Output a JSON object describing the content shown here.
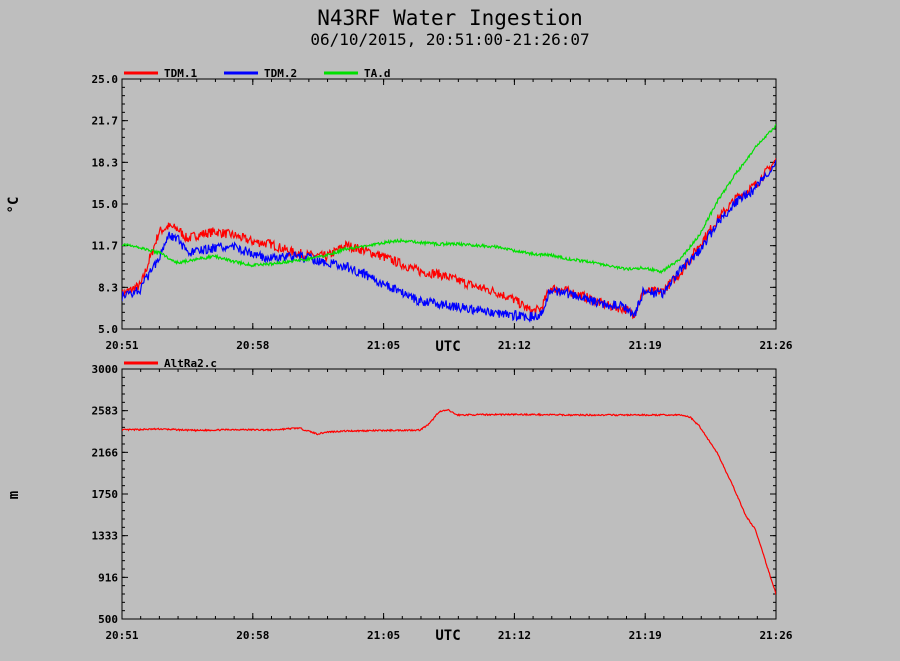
{
  "header": {
    "title": "N43RF Water Ingestion",
    "subtitle": "06/10/2015, 20:51:00-21:26:07"
  },
  "chart_data": [
    {
      "type": "line",
      "ylabel": "°C",
      "xlabel": "UTC",
      "ylim": [
        5.0,
        25.0
      ],
      "yticks": [
        "25.0",
        "21.7",
        "18.3",
        "15.0",
        "11.7",
        "8.3",
        "5.0"
      ],
      "xticks": [
        "20:51",
        "20:58",
        "21:05",
        "21:12",
        "21:19",
        "21:26"
      ],
      "xlim_min": [
        0,
        35.12
      ],
      "series": [
        {
          "name": "TDM.1",
          "color": "#ff0000",
          "x": [
            0,
            1,
            2,
            2.5,
            3,
            3.5,
            4,
            5,
            6,
            7,
            8,
            9,
            10,
            11,
            12,
            13,
            14,
            15,
            16,
            17,
            18,
            19,
            20,
            21,
            22,
            22.5,
            23,
            24,
            25,
            26,
            27,
            27.5,
            28,
            29,
            30,
            31,
            32,
            33,
            34,
            35.12
          ],
          "y": [
            7.8,
            8.5,
            12.8,
            13.2,
            13.0,
            12.2,
            12.5,
            12.8,
            12.5,
            12.0,
            11.8,
            11.2,
            10.9,
            10.8,
            11.7,
            11.3,
            10.8,
            10.2,
            9.6,
            9.4,
            8.9,
            8.4,
            8.0,
            7.4,
            6.4,
            6.6,
            8.3,
            8.0,
            7.5,
            6.9,
            6.6,
            6.2,
            8.0,
            8.0,
            9.5,
            11.7,
            13.8,
            15.5,
            16.5,
            18.5
          ]
        },
        {
          "name": "TDM.2",
          "color": "#0000ff",
          "x": [
            0,
            1,
            2,
            2.5,
            3,
            3.5,
            4,
            5,
            6,
            7,
            8,
            9,
            10,
            11,
            12,
            13,
            14,
            15,
            16,
            17,
            18,
            19,
            20,
            21,
            22,
            22.5,
            23,
            24,
            25,
            26,
            27,
            27.5,
            28,
            29,
            30,
            31,
            32,
            33,
            34,
            35.12
          ],
          "y": [
            7.6,
            8.2,
            10.8,
            12.6,
            12.2,
            11.0,
            11.2,
            11.5,
            11.6,
            11.0,
            10.6,
            10.8,
            10.7,
            10.3,
            10.0,
            9.4,
            8.6,
            8.0,
            7.2,
            7.0,
            6.8,
            6.5,
            6.3,
            6.1,
            6.0,
            6.2,
            8.2,
            7.8,
            7.3,
            7.0,
            6.8,
            6.0,
            8.0,
            7.8,
            9.8,
            11.2,
            13.5,
            15.2,
            16.2,
            18.3
          ]
        },
        {
          "name": "TA.d",
          "color": "#00e000",
          "x": [
            0,
            1,
            2,
            3,
            4,
            5,
            6,
            7,
            8,
            9,
            10,
            11,
            12,
            13,
            14,
            15,
            16,
            17,
            18,
            19,
            20,
            21,
            22,
            23,
            24,
            25,
            26,
            27,
            28,
            29,
            30,
            31,
            32,
            33,
            34,
            35.12
          ],
          "y": [
            11.8,
            11.5,
            11.1,
            10.3,
            10.6,
            10.8,
            10.4,
            10.1,
            10.2,
            10.4,
            10.6,
            10.9,
            11.4,
            11.6,
            11.9,
            12.1,
            11.9,
            11.8,
            11.8,
            11.7,
            11.6,
            11.3,
            11.0,
            10.9,
            10.6,
            10.4,
            10.1,
            9.8,
            9.9,
            9.6,
            10.6,
            12.5,
            15.3,
            17.5,
            19.5,
            21.3
          ]
        }
      ]
    },
    {
      "type": "line",
      "ylabel": "m",
      "xlabel": "UTC",
      "ylim": [
        500,
        3000
      ],
      "yticks": [
        "3000",
        "2583",
        "2166",
        "1750",
        "1333",
        "916",
        "500"
      ],
      "xticks": [
        "20:51",
        "20:58",
        "21:05",
        "21:12",
        "21:19",
        "21:26"
      ],
      "xlim_min": [
        0,
        35.12
      ],
      "series": [
        {
          "name": "AltRa2.c",
          "color": "#ff0000",
          "x": [
            0,
            2,
            4,
            6,
            8,
            9.5,
            10.5,
            11,
            12,
            14,
            16,
            16.5,
            17,
            17.5,
            18,
            20,
            22,
            24,
            26,
            28,
            30,
            30.5,
            31,
            32,
            33,
            33.5,
            34,
            35.12
          ],
          "y": [
            2390,
            2400,
            2385,
            2395,
            2390,
            2410,
            2350,
            2370,
            2380,
            2385,
            2390,
            2450,
            2570,
            2590,
            2540,
            2545,
            2545,
            2540,
            2540,
            2540,
            2540,
            2520,
            2430,
            2150,
            1750,
            1530,
            1400,
            750
          ]
        }
      ]
    }
  ]
}
